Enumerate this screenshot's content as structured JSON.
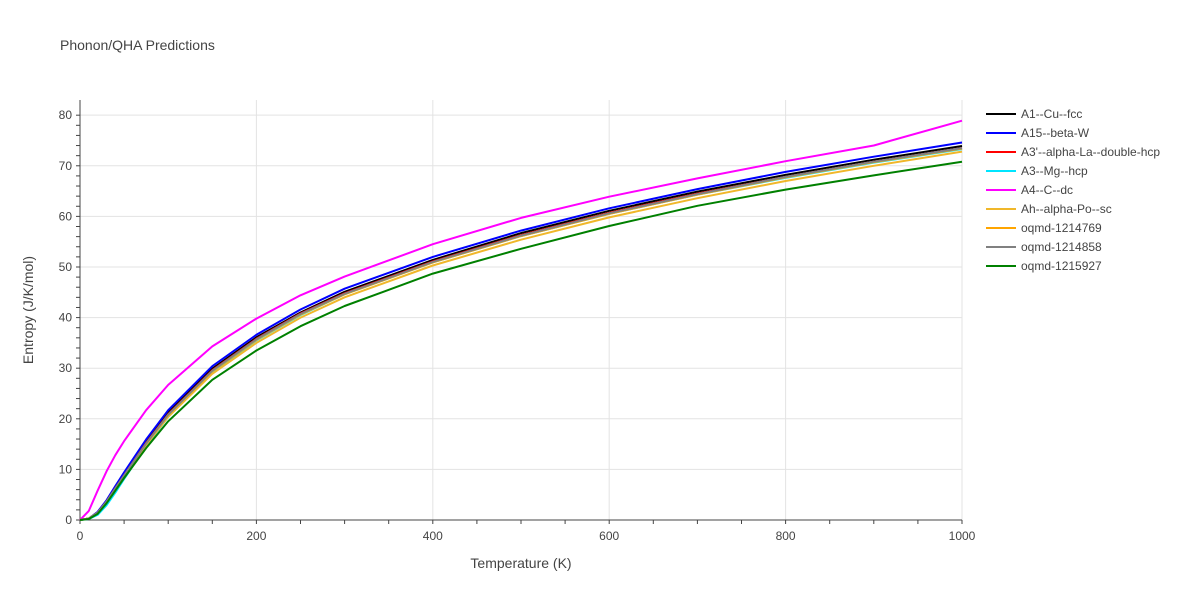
{
  "chart_data": {
    "type": "line",
    "title": "Phonon/QHA Predictions",
    "xlabel": "Temperature (K)",
    "ylabel": "Entropy (J/K/mol)",
    "xlim": [
      0,
      1000
    ],
    "ylim": [
      0,
      83
    ],
    "xticks": [
      0,
      200,
      400,
      600,
      800,
      1000
    ],
    "yticks": [
      0,
      10,
      20,
      30,
      40,
      50,
      60,
      70,
      80
    ],
    "grid": true,
    "legend_position": "right",
    "x": [
      0,
      10,
      20,
      30,
      40,
      50,
      75,
      100,
      150,
      200,
      250,
      300,
      400,
      500,
      600,
      700,
      800,
      900,
      1000
    ],
    "series": [
      {
        "name": "A1--Cu--fcc",
        "color": "#000000",
        "values": [
          0,
          0.3,
          1.5,
          3.7,
          6.4,
          9.0,
          15.5,
          21.2,
          29.9,
          36.1,
          41.0,
          45.1,
          51.4,
          56.7,
          61.1,
          64.9,
          68.2,
          71.2,
          73.9
        ]
      },
      {
        "name": "A15--beta-W",
        "color": "#0000ff",
        "values": [
          0,
          0.3,
          1.6,
          3.9,
          6.7,
          9.4,
          15.9,
          21.7,
          30.4,
          36.6,
          41.6,
          45.7,
          52.0,
          57.2,
          61.6,
          65.4,
          68.8,
          71.8,
          74.6
        ]
      },
      {
        "name": "A3'--alpha-La--double-hcp",
        "color": "#ff0000",
        "values": [
          0,
          0.3,
          1.4,
          3.6,
          6.2,
          8.8,
          15.2,
          20.9,
          29.6,
          35.8,
          40.8,
          44.8,
          51.1,
          56.3,
          60.7,
          64.5,
          67.8,
          70.8,
          73.5
        ]
      },
      {
        "name": "A3--Mg--hcp",
        "color": "#00e5ff",
        "values": [
          0,
          0.2,
          1.0,
          2.9,
          5.4,
          8.1,
          14.6,
          20.4,
          29.2,
          35.5,
          40.5,
          44.6,
          50.9,
          56.1,
          60.5,
          64.3,
          67.6,
          70.6,
          73.3
        ]
      },
      {
        "name": "A4--C--dc",
        "color": "#ff00ff",
        "values": [
          0,
          1.8,
          5.8,
          9.6,
          12.8,
          15.6,
          21.7,
          26.7,
          34.3,
          39.8,
          44.4,
          48.1,
          54.5,
          59.7,
          63.9,
          67.5,
          70.9,
          74.0,
          78.9
        ]
      },
      {
        "name": "Ah--alpha-Po--sc",
        "color": "#f0b72a",
        "values": [
          0,
          0.3,
          1.4,
          3.5,
          6.1,
          8.6,
          14.8,
          20.4,
          28.9,
          35.0,
          40.0,
          44.0,
          50.3,
          55.4,
          59.8,
          63.6,
          67.0,
          70.0,
          72.8
        ]
      },
      {
        "name": "oqmd-1214769",
        "color": "#ffa500",
        "values": [
          0,
          0.3,
          1.4,
          3.6,
          6.2,
          8.8,
          15.1,
          20.8,
          29.4,
          35.6,
          40.6,
          44.6,
          50.9,
          56.1,
          60.5,
          64.3,
          67.7,
          70.7,
          73.4
        ]
      },
      {
        "name": "oqmd-1214858",
        "color": "#808080",
        "values": [
          0,
          0.3,
          1.4,
          3.6,
          6.2,
          8.8,
          15.1,
          20.8,
          29.5,
          35.7,
          40.7,
          44.7,
          51.0,
          56.2,
          60.6,
          64.4,
          67.8,
          70.8,
          73.5
        ]
      },
      {
        "name": "oqmd-1215927",
        "color": "#008000",
        "values": [
          0,
          0.2,
          1.2,
          3.3,
          5.8,
          8.3,
          14.2,
          19.5,
          27.7,
          33.5,
          38.3,
          42.3,
          48.7,
          53.6,
          58.1,
          62.1,
          65.3,
          68.1,
          70.8
        ]
      }
    ]
  }
}
